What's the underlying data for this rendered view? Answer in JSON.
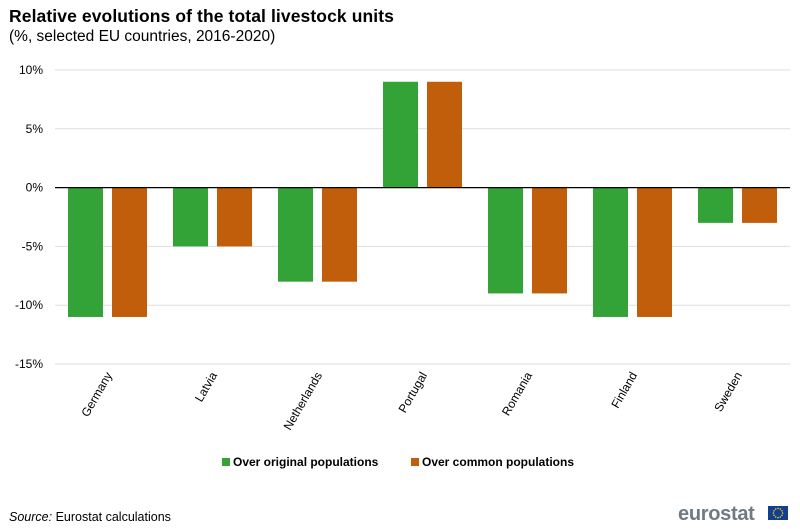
{
  "title": "Relative evolutions of the total livestock units",
  "subtitle": "(%, selected EU countries, 2016-2020)",
  "source_label": "Source:",
  "source_text": "Eurostat calculations",
  "logo_text": "eurostat",
  "colors": {
    "series1": "#33a237",
    "series2": "#c05e0b",
    "grid": "#dedede",
    "zero_line": "#000000"
  },
  "chart_data": {
    "type": "bar",
    "title": "Relative evolutions of the total livestock units",
    "subtitle": "(%, selected EU countries, 2016-2020)",
    "categories": [
      "Germany",
      "Latvia",
      "Netherlands",
      "Portugal",
      "Romania",
      "Finland",
      "Sweden"
    ],
    "series": [
      {
        "name": "Over original populations",
        "color": "#33a237",
        "values": [
          -11,
          -5,
          -8,
          9,
          -9,
          -11,
          -3
        ]
      },
      {
        "name": "Over common populations",
        "color": "#c05e0b",
        "values": [
          -11,
          -5,
          -8,
          9,
          -9,
          -11,
          -3
        ]
      }
    ],
    "ylim": [
      -15,
      10
    ],
    "yticks": [
      10,
      5,
      0,
      -5,
      -10,
      -15
    ],
    "ytick_labels": [
      "10%",
      "5%",
      "0%",
      "-5%",
      "-10%",
      "-15%"
    ],
    "xlabel": "",
    "ylabel": "",
    "grid": true,
    "legend_position": "bottom"
  }
}
